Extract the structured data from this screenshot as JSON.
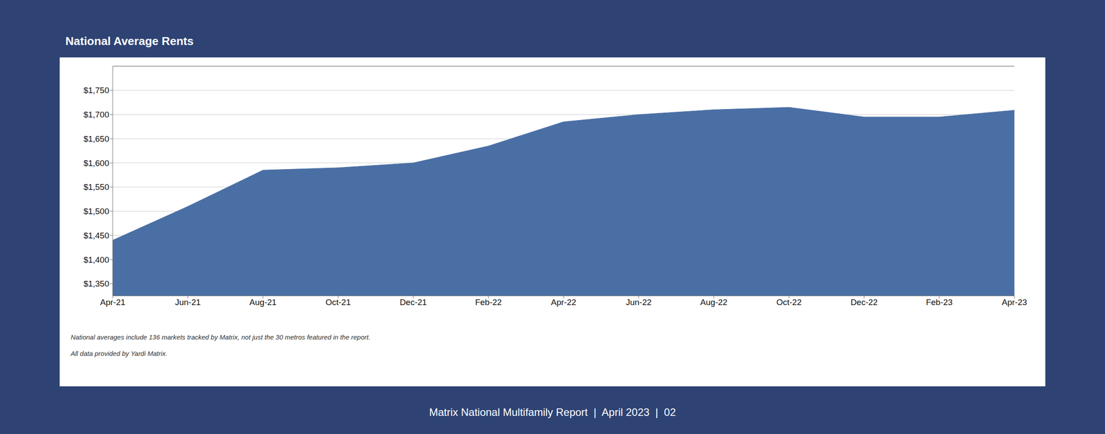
{
  "chart_data": {
    "type": "area",
    "title": "National Average Rents",
    "annotations": [
      "National averages include 136 markets tracked by Matrix, not just the 30 metros featured in the report.",
      "All data provided by Yardi Matrix.",
      "Matrix National Multifamily Report  |  April 2023  |  02"
    ],
    "categories": [
      "Apr-21",
      "Jun-21",
      "Aug-21",
      "Oct-21",
      "Dec-21",
      "Feb-22",
      "Apr-22",
      "Jun-22",
      "Aug-22",
      "Oct-22",
      "Dec-22",
      "Feb-23",
      "Apr-23"
    ],
    "values": [
      1440,
      1510,
      1585,
      1590,
      1600,
      1635,
      1685,
      1700,
      1710,
      1715,
      1695,
      1695,
      1709
    ],
    "color": "#4a6fa5",
    "ylim": [
      1325,
      1800
    ],
    "yticks": [
      {
        "value": 1350,
        "label": "$1,350"
      },
      {
        "value": 1400,
        "label": "$1,400"
      },
      {
        "value": 1450,
        "label": "$1,450"
      },
      {
        "value": 1500,
        "label": "$1,500"
      },
      {
        "value": 1550,
        "label": "$1,550"
      },
      {
        "value": 1600,
        "label": "$1,600"
      },
      {
        "value": 1650,
        "label": "$1,650"
      },
      {
        "value": 1700,
        "label": "$1,700"
      },
      {
        "value": 1750,
        "label": "$1,750"
      }
    ],
    "grid": true
  }
}
